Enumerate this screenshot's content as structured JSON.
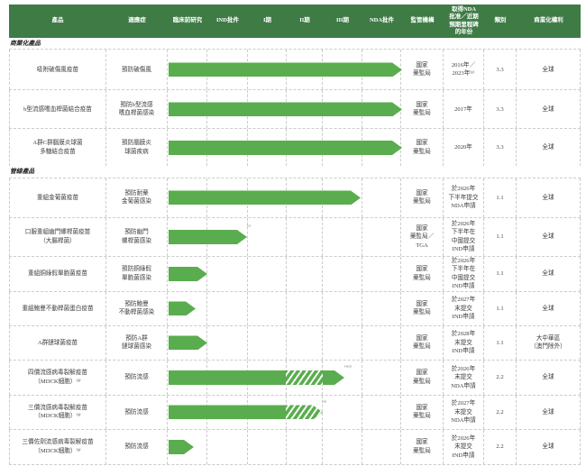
{
  "colors": {
    "header_bg": "#3e7b45",
    "bar_green": "#5aad4e",
    "border_dash": "#cbcbcb"
  },
  "header": {
    "columns": [
      "產品",
      "適應症",
      "臨床前研究",
      "IND批件",
      "I期",
      "II期",
      "III期",
      "NDA批件",
      "監管機構",
      "取得NDA\n批准／近期\n預期里程碑\n的年份",
      "類別",
      "商業化權利"
    ]
  },
  "sections": [
    {
      "label": "商業化產品",
      "rows": [
        {
          "product": "吸附破傷風疫苗",
          "indication": "預防破傷風",
          "regulator": "國家\n藥監局",
          "milestone": "2016年／\n2023年⁽¹⁾",
          "category": "3.3",
          "rights": "全球",
          "bar": {
            "start": 177,
            "end": 436
          }
        },
        {
          "product": "b型流感嗜血桿菌結合疫苗",
          "indication": "預防b型流感\n嗜血桿菌感染",
          "regulator": "國家\n藥監局",
          "milestone": "2017年",
          "category": "3.3",
          "rights": "全球",
          "bar": {
            "start": 177,
            "end": 436
          }
        },
        {
          "product": "A群C群腦膜炎球菌\n多糖結合疫苗",
          "indication": "預防腦膜炎\n球菌疾病",
          "regulator": "國家\n藥監局",
          "milestone": "2020年",
          "category": "3.3",
          "rights": "全球",
          "bar": {
            "start": 177,
            "end": 436
          }
        }
      ]
    },
    {
      "label": "管線產品",
      "rows": [
        {
          "product": "重組金葡菌疫苗",
          "indication": "預防耐藥\n金葡菌感染",
          "regulator": "國家\n藥監局",
          "milestone": "於2026年\n下半年提交\nNDA申請",
          "category": "1.1",
          "rights": "全球",
          "bar": {
            "start": 177,
            "end": 390
          }
        },
        {
          "product": "口服重組幽門螺桿菌疫苗\n（大腸桿菌）",
          "indication": "預防幽門\n螺桿菌感染",
          "regulator": "國家\n藥監局／\nTGA",
          "milestone": "於2026年\n下半年在\n中國提交\nIND申請",
          "category": "1.1",
          "rights": "全球",
          "bar": {
            "start": 177,
            "end": 264,
            "note": "⁽²⁾"
          }
        },
        {
          "product": "重組銅綠假單胞菌疫苗",
          "indication": "預防銅綠假\n單胞菌感染",
          "regulator": "國家\n藥監局",
          "milestone": "於2026年\n下半年在\n中國提交\nIND申請",
          "category": "1.1",
          "rights": "全球",
          "bar": {
            "start": 177,
            "end": 220
          }
        },
        {
          "product": "重組鮑曼不動桿菌蛋白疫苗",
          "indication": "預防鮑曼\n不動桿菌感染",
          "regulator": "國家\n藥監局",
          "milestone": "於2027年\n末提交\nIND申請",
          "category": "1.1",
          "rights": "全球",
          "bar": {
            "start": 177,
            "end": 207
          }
        },
        {
          "product": "A群鏈球菌疫苗",
          "indication": "預防A群\n鏈球菌感染",
          "regulator": "國家\n藥監局",
          "milestone": "於2028年\n末提交\nIND申請",
          "category": "1.1",
          "rights": "大中華區\n（澳門除外）",
          "bar": {
            "start": 177,
            "end": 220
          }
        },
        {
          "product": "四價流感病毒裂解疫苗\n（MDCK細胞）⁽³⁾",
          "indication": "預防流感",
          "regulator": "國家\n藥監局",
          "milestone": "於2026年\n末提交\nNDA申請",
          "category": "2.2",
          "rights": "全球",
          "bar": {
            "start": 177,
            "end": 372,
            "hatch_from": 307,
            "hatch_to": 348,
            "note": "⁽⁴⁾⁽⁵⁾"
          }
        },
        {
          "product": "三價流感病毒裂解疫苗\n（MDCK細胞）⁽³⁾",
          "indication": "預防流感",
          "regulator": "國家\n藥監局",
          "milestone": "於2027年\n末提交\nNDA申請",
          "category": "2.2",
          "rights": "全球",
          "bar": {
            "start": 177,
            "end": 348,
            "hatch_from": 307,
            "hatch_to": 348,
            "note": "⁽⁴⁾"
          }
        },
        {
          "product": "三價佐劑流感病毒裂解疫苗\n（MDCK細胞）⁽³⁾",
          "indication": "預防流感",
          "regulator": "國家\n藥監局",
          "milestone": "於2026年\n末提交\nIND申請",
          "category": "2.2",
          "rights": "全球",
          "bar": {
            "start": 177,
            "end": 205
          }
        }
      ]
    }
  ]
}
